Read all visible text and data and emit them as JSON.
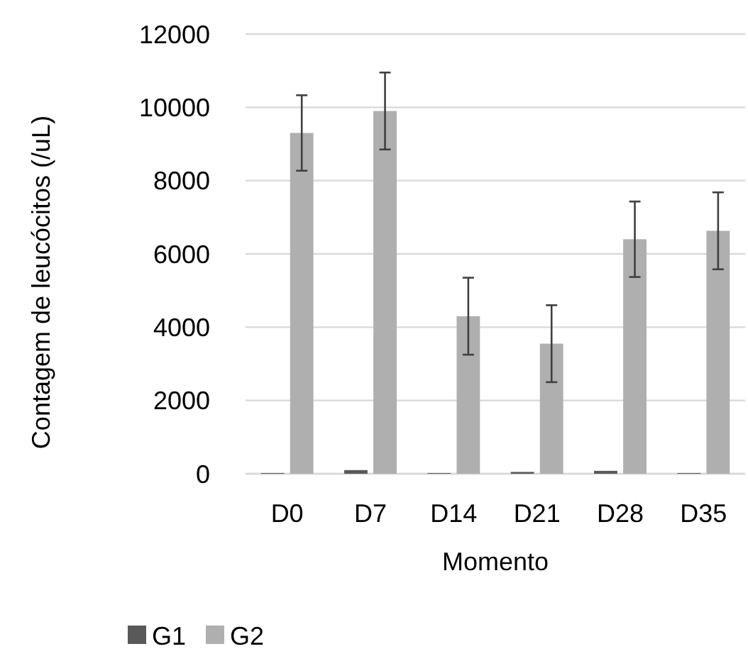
{
  "chart_data": {
    "type": "bar",
    "xlabel": "Momento",
    "ylabel": "Contagem de leucócitos (/uL)",
    "categories": [
      "D0",
      "D7",
      "D14",
      "D21",
      "D28",
      "D35"
    ],
    "series": [
      {
        "name": "G1",
        "color": "#595959",
        "values": [
          20,
          100,
          20,
          50,
          80,
          20
        ]
      },
      {
        "name": "G2",
        "color": "#afafaf",
        "values": [
          9300,
          9900,
          4300,
          3550,
          6400,
          6630
        ],
        "errors": [
          1030,
          1050,
          1050,
          1050,
          1030,
          1050
        ]
      }
    ],
    "ylim": [
      0,
      12000
    ],
    "yticks": [
      0,
      2000,
      4000,
      6000,
      8000,
      10000,
      12000
    ],
    "grid": "y",
    "legend": "bottom left"
  }
}
